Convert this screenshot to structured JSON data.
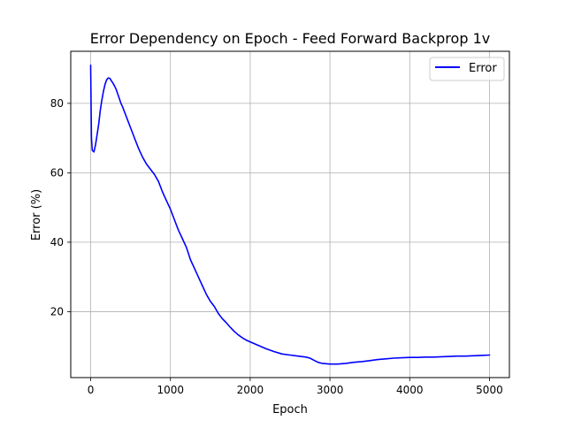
{
  "chart_data": {
    "type": "line",
    "title": "Error Dependency on Epoch - Feed Forward Backprop 1v",
    "xlabel": "Epoch",
    "ylabel": "Error (%)",
    "xlim": [
      -250,
      5250
    ],
    "ylim": [
      1,
      95
    ],
    "xticks": [
      0,
      1000,
      2000,
      3000,
      4000,
      5000
    ],
    "yticks": [
      20,
      40,
      60,
      80
    ],
    "xtick_labels": [
      "0",
      "1000",
      "2000",
      "3000",
      "4000",
      "5000"
    ],
    "ytick_labels": [
      "20",
      "40",
      "60",
      "80"
    ],
    "grid": true,
    "legend_position": "top-right",
    "series": [
      {
        "name": "Error",
        "color": "#0000ff",
        "x": [
          0,
          10,
          20,
          40,
          60,
          80,
          100,
          120,
          140,
          160,
          180,
          200,
          220,
          240,
          260,
          280,
          300,
          320,
          350,
          380,
          400,
          450,
          500,
          550,
          600,
          650,
          700,
          750,
          800,
          850,
          900,
          950,
          1000,
          1050,
          1100,
          1150,
          1200,
          1250,
          1300,
          1350,
          1400,
          1450,
          1500,
          1550,
          1600,
          1650,
          1700,
          1750,
          1800,
          1850,
          1900,
          1950,
          2000,
          2100,
          2200,
          2300,
          2400,
          2500,
          2600,
          2700,
          2750,
          2800,
          2850,
          2900,
          3000,
          3100,
          3200,
          3300,
          3400,
          3500,
          3600,
          3700,
          3800,
          3900,
          4000,
          4100,
          4200,
          4300,
          4400,
          4500,
          4600,
          4700,
          4800,
          4900,
          5000
        ],
        "y": [
          91,
          70,
          66.5,
          66,
          68,
          71,
          74,
          78,
          81,
          83.5,
          85.5,
          86.8,
          87.3,
          87.2,
          86.5,
          85.8,
          85,
          84,
          82,
          80,
          79,
          76,
          73,
          70,
          67,
          64.5,
          62.5,
          61,
          59.5,
          57.5,
          54.5,
          52,
          49.5,
          46.5,
          43.5,
          41,
          38.5,
          35,
          32.5,
          30,
          27.5,
          25,
          23,
          21.5,
          19.5,
          18,
          16.8,
          15.5,
          14.3,
          13.3,
          12.5,
          11.8,
          11.3,
          10.3,
          9.3,
          8.5,
          7.8,
          7.5,
          7.2,
          6.9,
          6.6,
          6,
          5.4,
          5.1,
          4.9,
          4.9,
          5.1,
          5.4,
          5.6,
          5.9,
          6.2,
          6.4,
          6.6,
          6.7,
          6.8,
          6.8,
          6.9,
          6.9,
          7,
          7.1,
          7.2,
          7.2,
          7.3,
          7.4,
          7.5
        ]
      }
    ]
  }
}
